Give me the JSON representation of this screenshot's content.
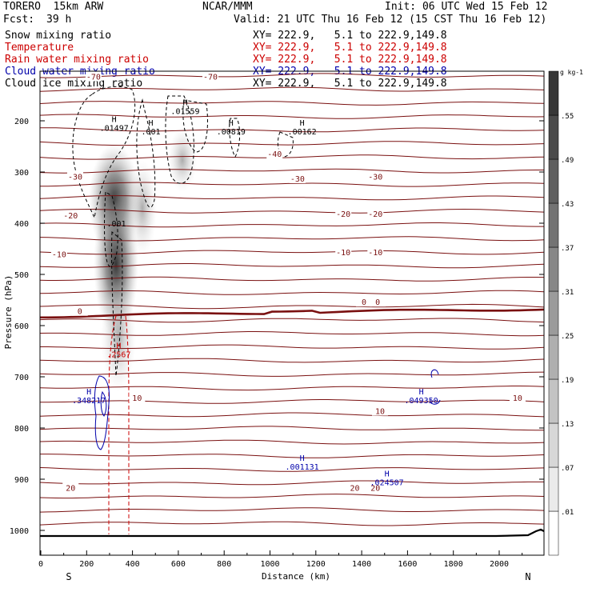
{
  "header": {
    "model": "TORERO  15km ARW",
    "center": "NCAR/MMM",
    "init": "Init: 06 UTC Wed 15 Feb 12",
    "fcst_label": "Fcst:",
    "fcst_value": "39 h",
    "valid": "Valid: 21 UTC Thu 16 Feb 12 (15 CST Thu 16 Feb 12)"
  },
  "fields": [
    {
      "name": "Snow mixing ratio",
      "xy": "XY= 222.9,   5.1 to 222.9,149.8",
      "color": "#000000"
    },
    {
      "name": "Temperature",
      "xy": "XY= 222.9,   5.1 to 222.9,149.8",
      "color": "#cc0000"
    },
    {
      "name": "Rain water mixing ratio",
      "xy": "XY= 222.9,   5.1 to 222.9,149.8",
      "color": "#cc0000"
    },
    {
      "name": "Cloud water mixing ratio",
      "xy": "XY= 222.9,   5.1 to 222.9,149.8",
      "color": "#0000aa"
    },
    {
      "name": "Cloud ice mixing ratio",
      "xy": "XY= 222.9,   5.1 to 222.9,149.8",
      "color": "#000000"
    }
  ],
  "colors": {
    "temperature": "#7a1010",
    "freezing_line": "#7a1010",
    "rain": "#cc0000",
    "cloud_water": "#0000aa",
    "cloud_ice": "#000000",
    "terrain": "#000000"
  },
  "chart_data": {
    "type": "heatmap",
    "title": "",
    "xlabel": "Distance (km)",
    "ylabel": "Pressure (hPa)",
    "xlim": [
      0,
      2200
    ],
    "ylim": [
      1050,
      100
    ],
    "x_ticks": [
      0,
      200,
      400,
      600,
      800,
      1000,
      1200,
      1400,
      1600,
      1800,
      2000
    ],
    "y_ticks": [
      200,
      300,
      400,
      500,
      600,
      700,
      800,
      900,
      1000
    ],
    "x_end_labels": {
      "left": "S",
      "right": "N"
    },
    "colorbar": {
      "unit": "g kg-1",
      "levels": [
        ".01",
        ".07",
        ".13",
        ".19",
        ".25",
        ".31",
        ".37",
        ".43",
        ".49",
        ".55"
      ]
    },
    "temperature_contours": {
      "labels": [
        {
          "text": "-70",
          "x": 230,
          "p": 115
        },
        {
          "text": "-70",
          "x": 740,
          "p": 115
        },
        {
          "text": "-40",
          "x": 1020,
          "p": 266
        },
        {
          "text": "-30",
          "x": 150,
          "p": 310
        },
        {
          "text": "-30",
          "x": 1120,
          "p": 314
        },
        {
          "text": "-30",
          "x": 1460,
          "p": 310
        },
        {
          "text": "-20",
          "x": 130,
          "p": 386
        },
        {
          "text": "-20",
          "x": 1320,
          "p": 383
        },
        {
          "text": "-20",
          "x": 1460,
          "p": 383
        },
        {
          "text": "-10",
          "x": 80,
          "p": 462
        },
        {
          "text": "-10",
          "x": 1320,
          "p": 458
        },
        {
          "text": "-10",
          "x": 1460,
          "p": 458
        },
        {
          "text": "0",
          "x": 170,
          "p": 573
        },
        {
          "text": "0",
          "x": 1410,
          "p": 555
        },
        {
          "text": "0",
          "x": 1470,
          "p": 555
        },
        {
          "text": "10",
          "x": 420,
          "p": 742
        },
        {
          "text": "10",
          "x": 1480,
          "p": 768
        },
        {
          "text": "10",
          "x": 2080,
          "p": 742
        },
        {
          "text": "20",
          "x": 130,
          "p": 918
        },
        {
          "text": "20",
          "x": 1370,
          "p": 918
        },
        {
          "text": "20",
          "x": 1460,
          "p": 918
        }
      ]
    },
    "maxima": [
      {
        "label": "H",
        "value": ".01497",
        "x": 320,
        "p": 218,
        "field": "snow"
      },
      {
        "label": "H",
        "value": ".01559",
        "x": 630,
        "p": 185,
        "field": "cloud_ice"
      },
      {
        "label": "H",
        "value": ".001",
        "x": 480,
        "p": 225,
        "field": "snow"
      },
      {
        "label": "H",
        "value": ".00819",
        "x": 830,
        "p": 225,
        "field": "cloud_ice"
      },
      {
        "label": "H",
        "value": ".00162",
        "x": 1140,
        "p": 225,
        "field": "cloud_ice"
      },
      {
        "label": "",
        "value": ".001",
        "x": 330,
        "p": 405,
        "field": "snow"
      },
      {
        "label": "H",
        "value": ".2567",
        "x": 340,
        "p": 660,
        "field": "rain"
      },
      {
        "label": "H",
        "value": ".348217",
        "x": 210,
        "p": 750,
        "field": "cloud_water"
      },
      {
        "label": "H",
        "value": ".049350",
        "x": 1660,
        "p": 750,
        "field": "cloud_water"
      },
      {
        "label": "H",
        "value": ".001131",
        "x": 1140,
        "p": 880,
        "field": "cloud_water"
      },
      {
        "label": "H",
        "value": ".024507",
        "x": 1510,
        "p": 910,
        "field": "cloud_water"
      }
    ]
  }
}
